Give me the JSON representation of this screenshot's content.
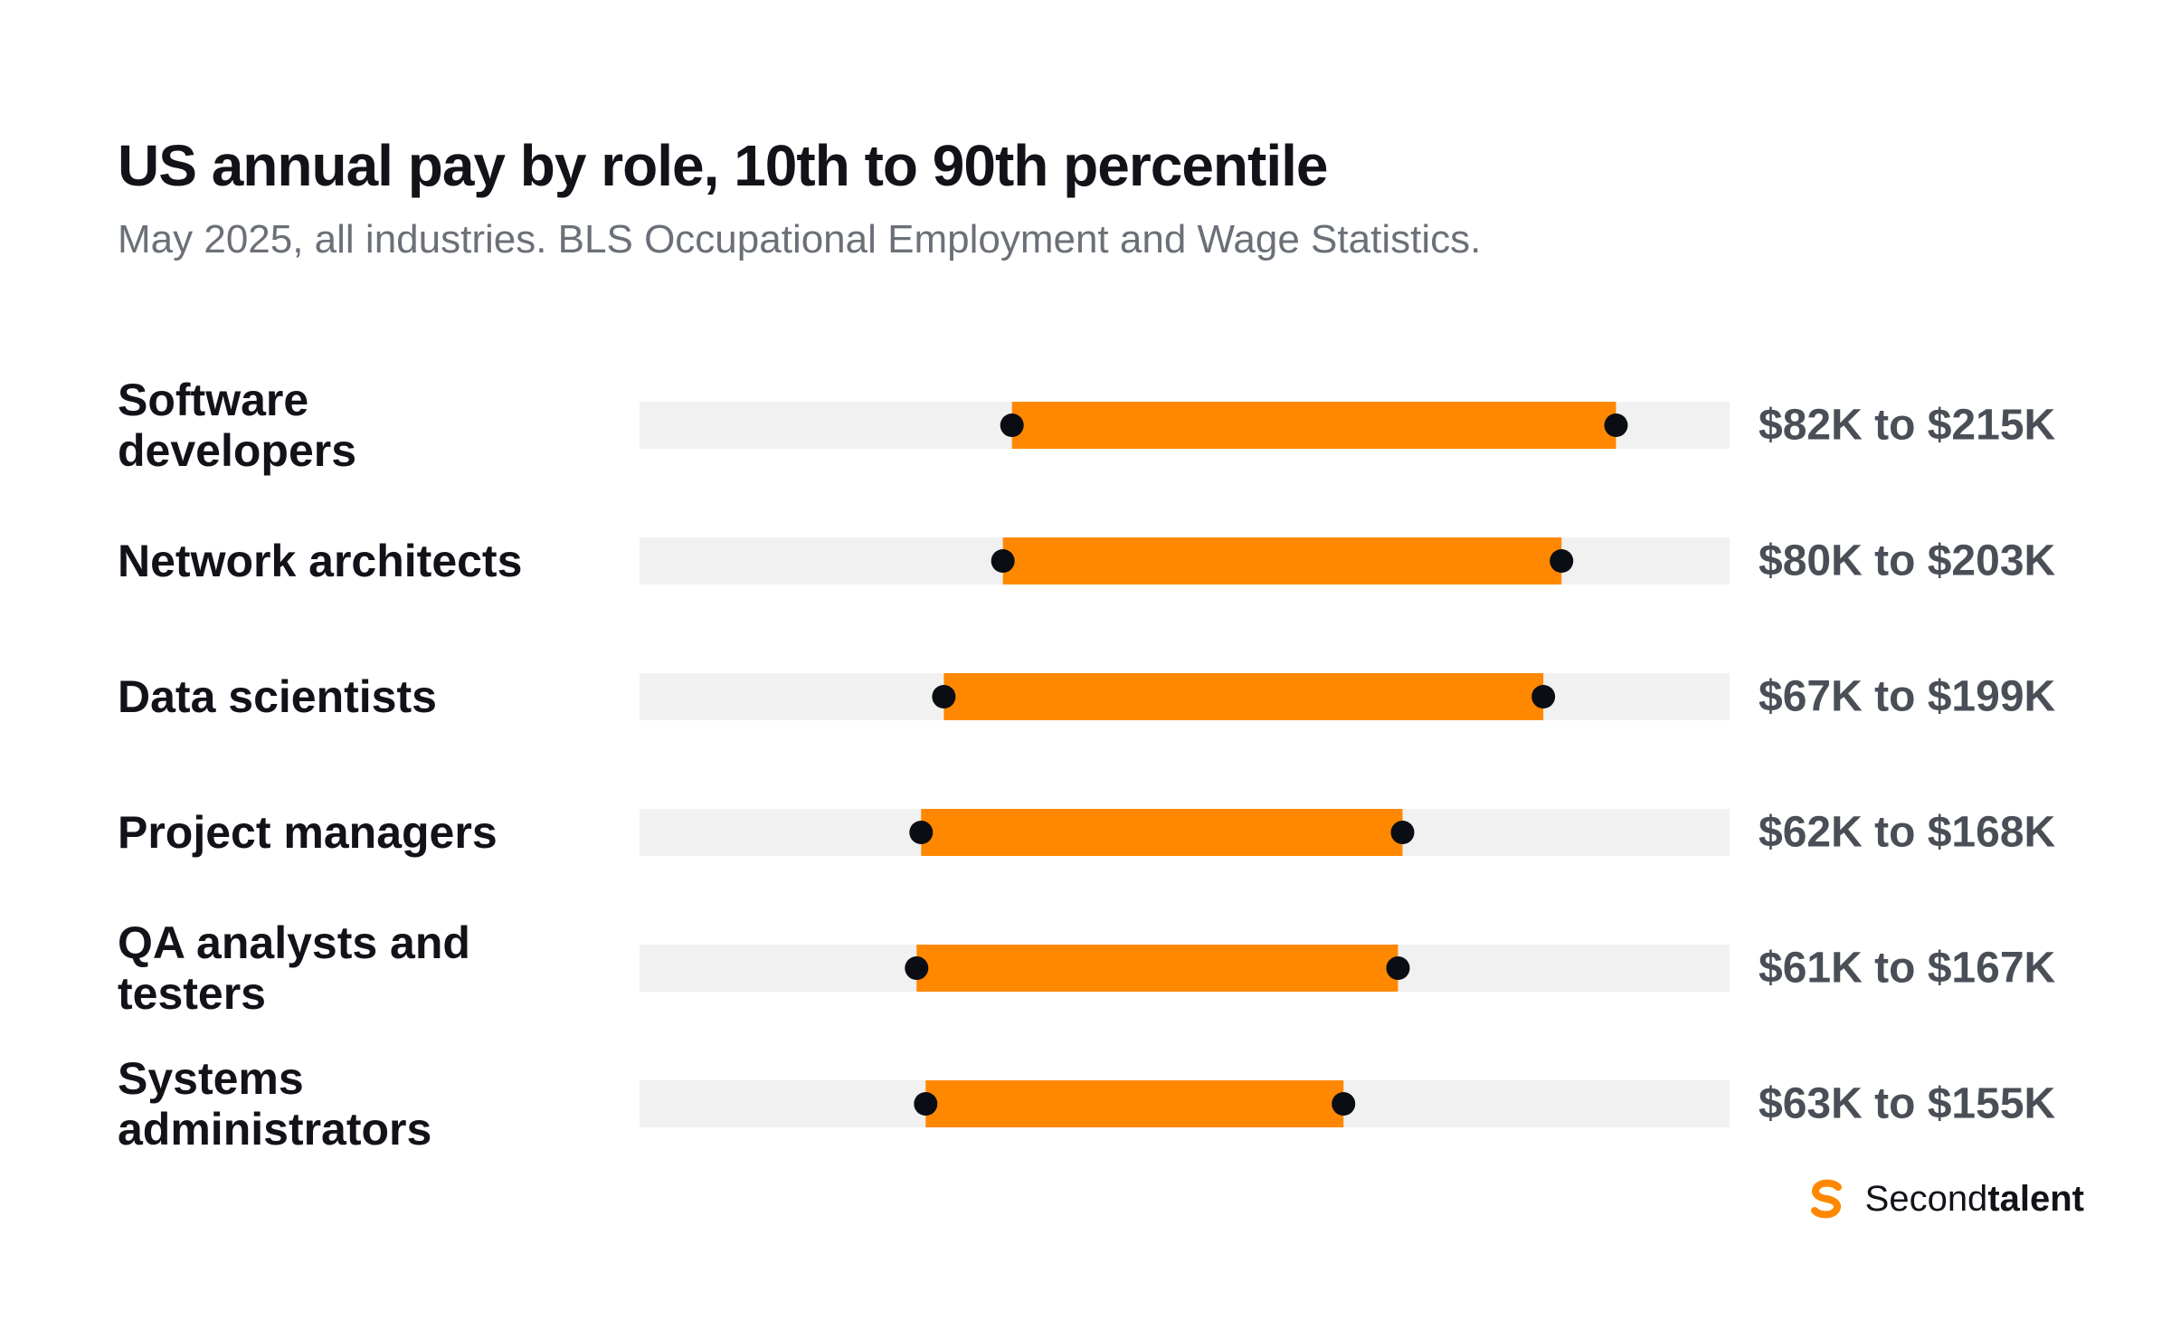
{
  "title": "US annual pay by role, 10th to 90th percentile",
  "subtitle": "May 2025, all industries. BLS Occupational Employment and Wage Statistics.",
  "brand": {
    "name_regular": "Second",
    "name_bold": "talent",
    "icon": "secondtalent-logo-icon"
  },
  "colors": {
    "bar": "#ff8800",
    "track": "#f0f1f0",
    "dot": "#0b0d14"
  },
  "chart_data": {
    "type": "bar",
    "subtype": "range",
    "x_domain": [
      0,
      240
    ],
    "x_unit": "$K",
    "grid": false,
    "legend": "none",
    "categories": [
      [
        "Software",
        "developers"
      ],
      [
        "Network architects"
      ],
      [
        "Data scientists"
      ],
      [
        "Project managers"
      ],
      [
        "QA analysts and",
        "testers"
      ],
      [
        "Systems",
        "administrators"
      ]
    ],
    "low": [
      82,
      80,
      67,
      62,
      61,
      63
    ],
    "high": [
      215,
      203,
      199,
      168,
      167,
      155
    ],
    "range_labels": [
      "$82K to $215K",
      "$80K to $203K",
      "$67K to $199K",
      "$62K to $168K",
      "$61K to $167K",
      "$63K to $155K"
    ]
  }
}
